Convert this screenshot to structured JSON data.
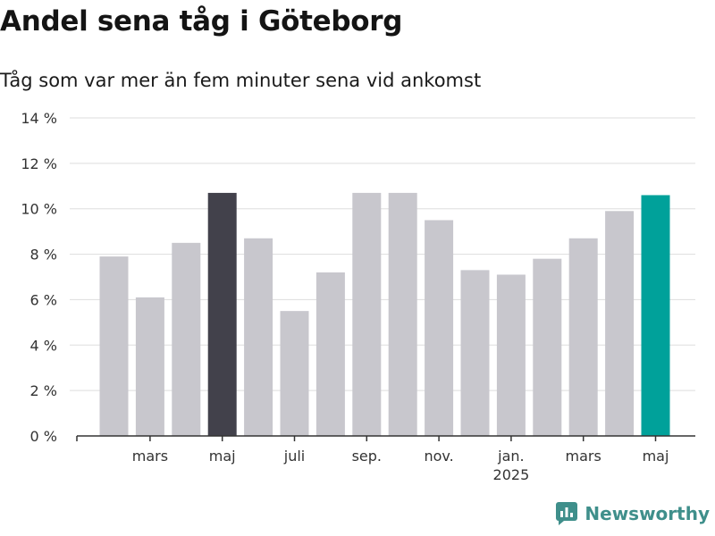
{
  "title": "Andel sena tåg i Göteborg",
  "subtitle": "Tåg som var mer än fem minuter sena vid ankomst",
  "brand": "Newsworthy",
  "colors": {
    "bar_default": "#c8c7cd",
    "bar_highlight_dark": "#42414b",
    "bar_highlight_accent": "#00a19a",
    "grid": "#dddddd",
    "axis": "#333333",
    "brand": "#3f8f8b"
  },
  "chart_data": {
    "type": "bar",
    "title": "Andel sena tåg i Göteborg",
    "subtitle": "Tåg som var mer än fem minuter sena vid ankomst",
    "xlabel": "",
    "ylabel": "",
    "unit": "%",
    "ylim": [
      0,
      14
    ],
    "y_ticks": [
      0,
      2,
      4,
      6,
      8,
      10,
      12,
      14
    ],
    "y_tick_labels": [
      "0 %",
      "2 %",
      "4 %",
      "6 %",
      "8 %",
      "10 %",
      "12 %",
      "14 %"
    ],
    "grid": true,
    "values": [
      7.9,
      6.1,
      8.5,
      10.7,
      8.7,
      5.5,
      7.2,
      10.7,
      10.7,
      9.5,
      7.3,
      7.1,
      7.8,
      8.7,
      9.9,
      10.6
    ],
    "highlight": [
      {
        "index": 3,
        "color_key": "bar_highlight_dark"
      },
      {
        "index": 15,
        "color_key": "bar_highlight_accent"
      }
    ],
    "x_tick_labels": [
      {
        "index": 1,
        "label": "mars",
        "sublabel": ""
      },
      {
        "index": 3,
        "label": "maj",
        "sublabel": ""
      },
      {
        "index": 5,
        "label": "juli",
        "sublabel": ""
      },
      {
        "index": 7,
        "label": "sep.",
        "sublabel": ""
      },
      {
        "index": 9,
        "label": "nov.",
        "sublabel": ""
      },
      {
        "index": 11,
        "label": "jan.",
        "sublabel": "2025"
      },
      {
        "index": 13,
        "label": "mars",
        "sublabel": ""
      },
      {
        "index": 15,
        "label": "maj",
        "sublabel": ""
      }
    ]
  }
}
